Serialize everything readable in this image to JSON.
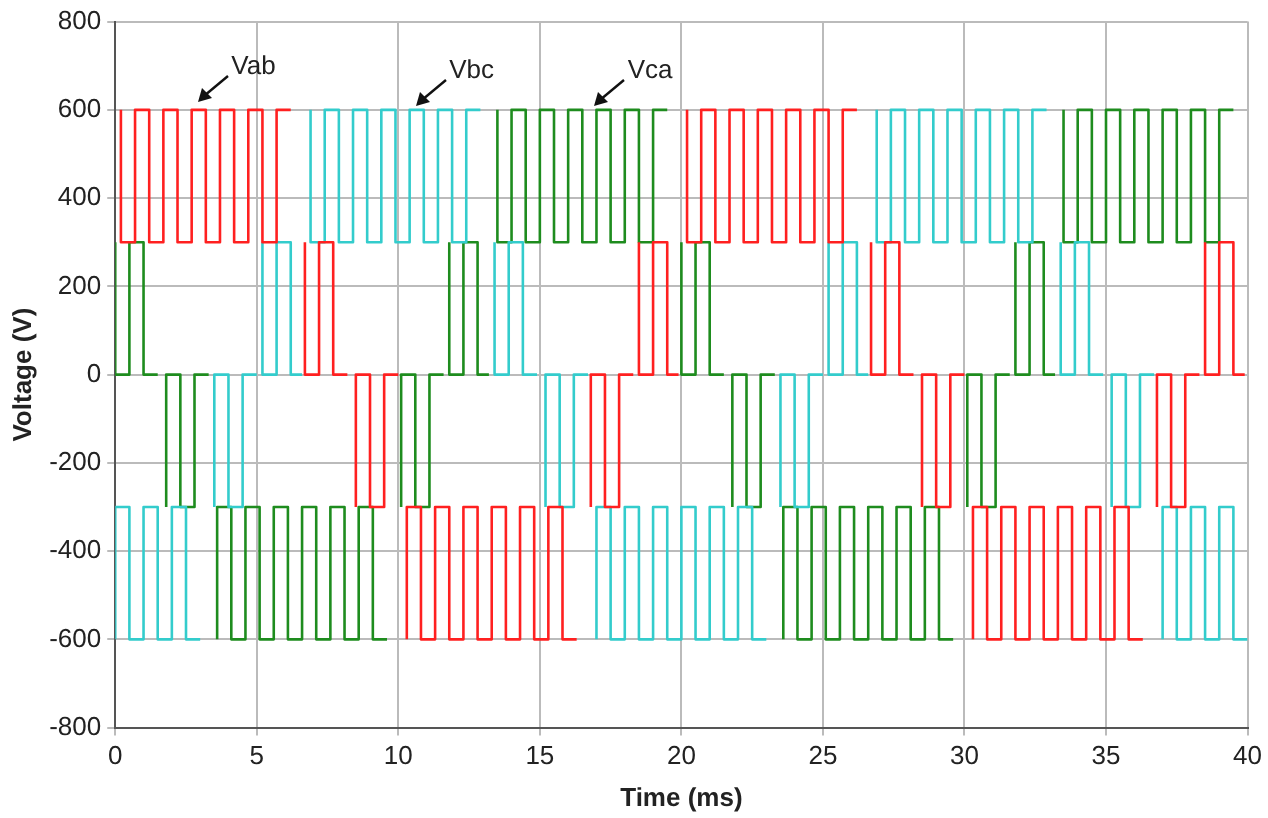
{
  "chart_data": {
    "type": "step",
    "xlabel": "Time (ms)",
    "ylabel": "Voltage (V)",
    "xlim": [
      0,
      40
    ],
    "xticks": [
      0,
      5,
      10,
      15,
      20,
      25,
      30,
      35,
      40
    ],
    "ylim": [
      -800,
      800
    ],
    "yticks": [
      -800,
      -600,
      -400,
      -200,
      0,
      200,
      400,
      600,
      800
    ],
    "grid": true,
    "legend": false,
    "marker": "none",
    "annotations": [
      {
        "text": "Vab",
        "x": 2.9,
        "y": 620
      },
      {
        "text": "Vbc",
        "x": 10.6,
        "y": 610
      },
      {
        "text": "Vca",
        "x": 16.9,
        "y": 610
      }
    ],
    "series": [
      {
        "color": "#ff2020",
        "x": [
          0.2,
          0.7,
          1.2,
          1.7,
          2.2,
          2.7,
          3.2,
          3.7,
          4.2,
          4.7,
          5.2,
          5.7,
          6.2,
          6.4,
          6.7,
          7.2,
          7.7,
          8.2,
          8.35,
          8.5,
          9.0,
          9.5,
          10.0,
          10.15,
          10.3,
          10.8,
          11.3,
          11.8,
          12.3,
          12.8,
          13.3,
          13.8,
          14.3,
          14.8,
          15.3,
          15.8,
          16.3,
          16.5,
          16.8,
          17.3,
          17.8,
          18.3,
          18.4,
          18.5,
          19.0,
          19.5,
          19.9,
          20.0,
          20.2,
          20.7,
          21.2,
          21.7,
          22.2,
          22.7,
          23.2,
          23.7,
          24.2,
          24.7,
          25.2,
          25.7,
          26.2,
          26.4,
          26.7,
          27.2,
          27.7,
          28.2,
          28.35,
          28.5,
          29.0,
          29.5,
          30.0,
          30.15,
          30.3,
          30.8,
          31.3,
          31.8,
          32.3,
          32.8,
          33.3,
          33.8,
          34.3,
          34.8,
          35.3,
          35.8,
          36.3,
          36.5,
          36.8,
          37.3,
          37.8,
          38.3,
          38.4,
          38.5,
          39.0,
          39.5,
          39.9
        ],
        "values": [
          600,
          300,
          600,
          300,
          600,
          300,
          600,
          300,
          600,
          300,
          600,
          300,
          600,
          null,
          300,
          0,
          300,
          0,
          null,
          -300,
          0,
          -300,
          0,
          null,
          -600,
          -300,
          -600,
          -300,
          -600,
          -300,
          -600,
          -300,
          -600,
          -300,
          -600,
          -300,
          -600,
          null,
          -300,
          0,
          -300,
          0,
          null,
          300,
          0,
          300,
          0,
          null,
          600,
          300,
          600,
          300,
          600,
          300,
          600,
          300,
          600,
          300,
          600,
          300,
          600,
          null,
          300,
          0,
          300,
          0,
          null,
          -300,
          0,
          -300,
          0,
          null,
          -600,
          -300,
          -600,
          -300,
          -600,
          -300,
          -600,
          -300,
          -600,
          -300,
          -600,
          -300,
          -600,
          null,
          -300,
          0,
          -300,
          0,
          null,
          300,
          0,
          300,
          0
        ]
      },
      {
        "color": "#33cccc",
        "x": [
          0,
          0.5,
          1.0,
          1.5,
          2.0,
          2.5,
          3.0,
          3.2,
          3.5,
          4.0,
          4.5,
          5.0,
          5.1,
          5.2,
          5.7,
          6.2,
          6.6,
          6.7,
          6.9,
          7.4,
          7.9,
          8.4,
          8.9,
          9.4,
          9.9,
          10.4,
          10.9,
          11.4,
          11.9,
          12.4,
          12.9,
          13.1,
          13.4,
          13.9,
          14.4,
          14.9,
          15.05,
          15.2,
          15.7,
          16.2,
          16.7,
          16.85,
          17.0,
          17.5,
          18.0,
          18.5,
          19.0,
          19.5,
          20.0,
          20.5,
          21.0,
          21.5,
          22.0,
          22.5,
          23.0,
          23.2,
          23.5,
          24.0,
          24.5,
          25.0,
          25.1,
          25.2,
          25.7,
          26.2,
          26.6,
          26.7,
          26.9,
          27.4,
          27.9,
          28.4,
          28.9,
          29.4,
          29.9,
          30.4,
          30.9,
          31.4,
          31.9,
          32.4,
          32.9,
          33.1,
          33.4,
          33.9,
          34.4,
          34.9,
          35.05,
          35.2,
          35.7,
          36.2,
          36.7,
          36.85,
          37.0,
          37.5,
          38.0,
          38.5,
          39.0,
          39.5,
          40.0
        ],
        "values": [
          -600,
          -300,
          -600,
          -300,
          -600,
          -300,
          -600,
          null,
          -300,
          0,
          -300,
          0,
          null,
          300,
          0,
          300,
          0,
          null,
          600,
          300,
          600,
          300,
          600,
          300,
          600,
          300,
          600,
          300,
          600,
          300,
          600,
          null,
          300,
          0,
          300,
          0,
          null,
          -300,
          0,
          -300,
          0,
          null,
          -600,
          -300,
          -600,
          -300,
          -600,
          -300,
          -600,
          -300,
          -600,
          -300,
          -600,
          -300,
          -600,
          null,
          -300,
          0,
          -300,
          0,
          null,
          300,
          0,
          300,
          0,
          null,
          600,
          300,
          600,
          300,
          600,
          300,
          600,
          300,
          600,
          300,
          600,
          300,
          600,
          null,
          300,
          0,
          300,
          0,
          null,
          -300,
          0,
          -300,
          0,
          null,
          -600,
          -300,
          -600,
          -300,
          -600,
          -300,
          -600
        ]
      },
      {
        "color": "#1e8c1e",
        "x": [
          0.0,
          0.5,
          1.0,
          1.5,
          1.65,
          1.8,
          2.3,
          2.8,
          3.3,
          3.45,
          3.6,
          4.1,
          4.6,
          5.1,
          5.6,
          6.1,
          6.6,
          7.1,
          7.6,
          8.1,
          8.6,
          9.1,
          9.6,
          9.85,
          10.1,
          10.6,
          11.1,
          11.6,
          11.7,
          11.8,
          12.3,
          12.8,
          13.2,
          13.3,
          13.5,
          14.0,
          14.5,
          15.0,
          15.5,
          16.0,
          16.5,
          17.0,
          17.5,
          18.0,
          18.5,
          19.0,
          19.5,
          19.75,
          20.0,
          20.5,
          21.0,
          21.5,
          21.65,
          21.8,
          22.3,
          22.8,
          23.3,
          23.45,
          23.6,
          24.1,
          24.6,
          25.1,
          25.6,
          26.1,
          26.6,
          27.1,
          27.6,
          28.1,
          28.6,
          29.1,
          29.6,
          29.85,
          30.1,
          30.6,
          31.1,
          31.6,
          31.7,
          31.8,
          32.3,
          32.8,
          33.2,
          33.3,
          33.5,
          34.0,
          34.5,
          35.0,
          35.5,
          36.0,
          36.5,
          37.0,
          37.5,
          38.0,
          38.5,
          39.0,
          39.5
        ],
        "values": [
          300,
          0,
          300,
          0,
          null,
          -300,
          0,
          -300,
          0,
          null,
          -600,
          -300,
          -600,
          -300,
          -600,
          -300,
          -600,
          -300,
          -600,
          -300,
          -600,
          -300,
          -600,
          null,
          -300,
          0,
          -300,
          0,
          null,
          300,
          0,
          300,
          0,
          null,
          600,
          300,
          600,
          300,
          600,
          300,
          600,
          300,
          600,
          300,
          600,
          300,
          600,
          null,
          300,
          0,
          300,
          0,
          null,
          -300,
          0,
          -300,
          0,
          null,
          -600,
          -300,
          -600,
          -300,
          -600,
          -300,
          -600,
          -300,
          -600,
          -300,
          -600,
          -300,
          -600,
          null,
          -300,
          0,
          -300,
          0,
          null,
          300,
          0,
          300,
          0,
          null,
          600,
          300,
          600,
          300,
          600,
          300,
          600,
          300,
          600,
          300,
          600,
          300,
          600
        ]
      }
    ]
  }
}
